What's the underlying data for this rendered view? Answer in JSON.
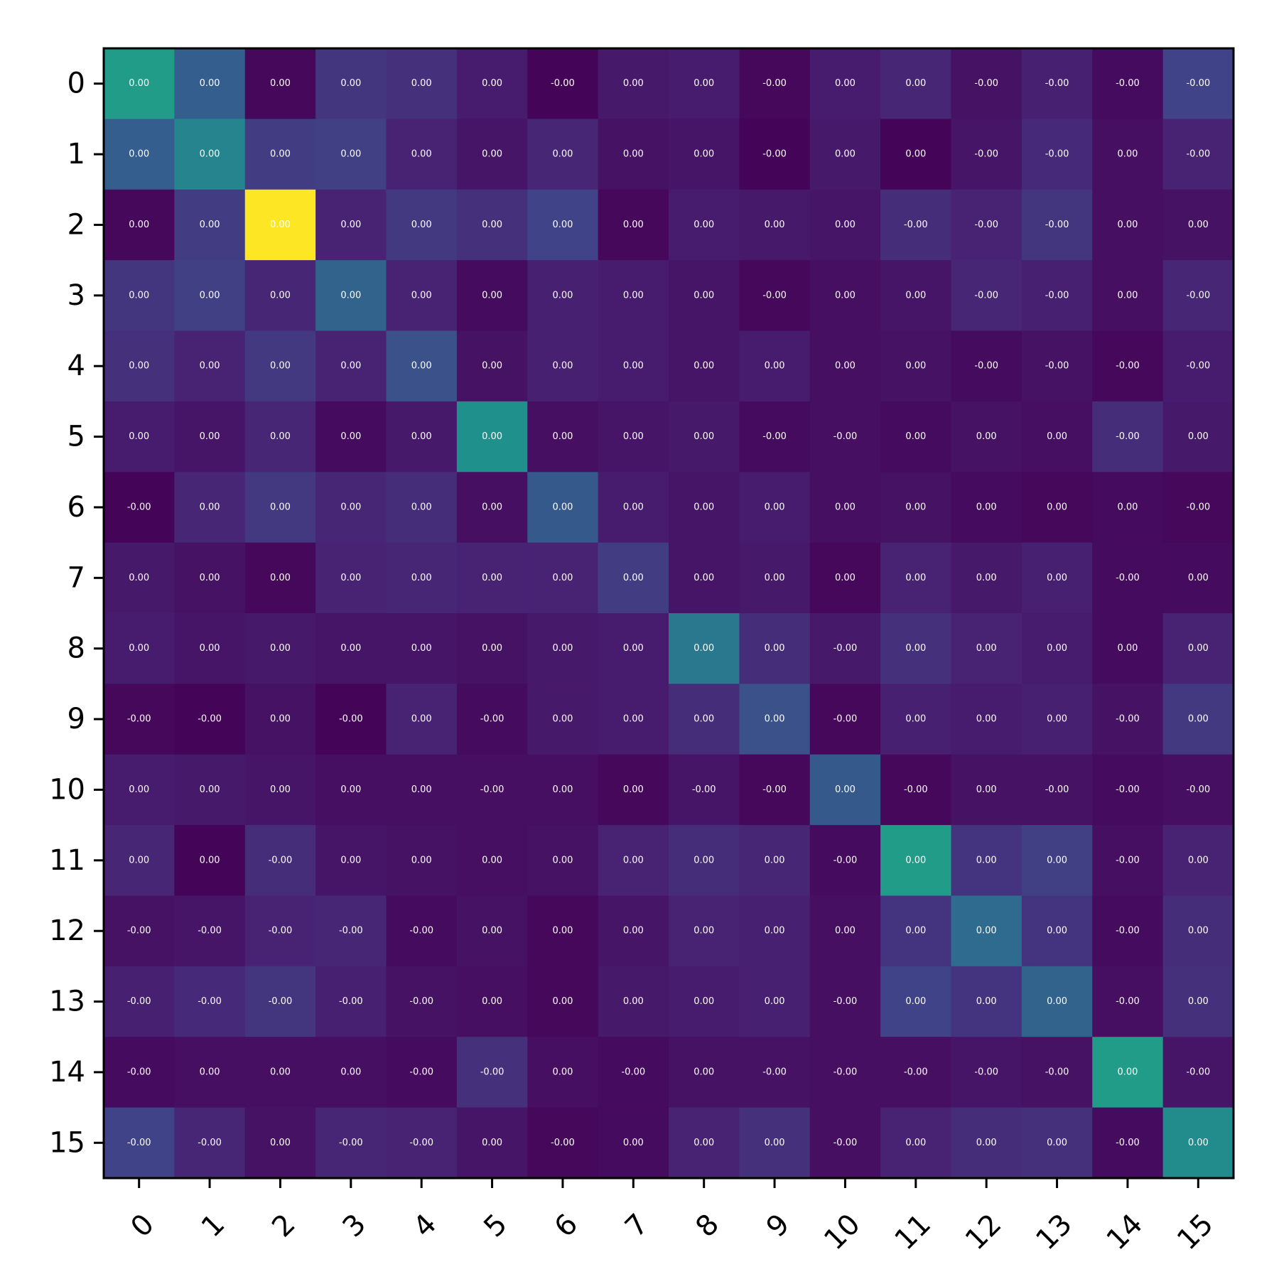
{
  "chart_data": {
    "type": "heatmap",
    "title": "",
    "xlabel": "",
    "ylabel": "",
    "x_tick_labels": [
      "0",
      "1",
      "2",
      "3",
      "4",
      "5",
      "6",
      "7",
      "8",
      "9",
      "10",
      "11",
      "12",
      "13",
      "14",
      "15"
    ],
    "y_tick_labels": [
      "0",
      "1",
      "2",
      "3",
      "4",
      "5",
      "6",
      "7",
      "8",
      "9",
      "10",
      "11",
      "12",
      "13",
      "14",
      "15"
    ],
    "x_tick_rotation_deg": 45,
    "colormap": "viridis",
    "color_range": [
      0.0,
      1.0
    ],
    "grid": false,
    "colorbar": false,
    "intensity": [
      [
        0.55,
        0.3,
        0.02,
        0.16,
        0.14,
        0.08,
        0.01,
        0.07,
        0.08,
        0.02,
        0.08,
        0.11,
        0.05,
        0.09,
        0.03,
        0.2
      ],
      [
        0.3,
        0.45,
        0.18,
        0.19,
        0.1,
        0.06,
        0.11,
        0.05,
        0.06,
        0.01,
        0.07,
        0.01,
        0.06,
        0.12,
        0.04,
        0.1
      ],
      [
        0.02,
        0.18,
        1.0,
        0.1,
        0.17,
        0.14,
        0.2,
        0.02,
        0.08,
        0.07,
        0.06,
        0.13,
        0.1,
        0.16,
        0.04,
        0.05
      ],
      [
        0.16,
        0.19,
        0.11,
        0.32,
        0.1,
        0.03,
        0.09,
        0.08,
        0.06,
        0.02,
        0.04,
        0.06,
        0.11,
        0.09,
        0.04,
        0.11
      ],
      [
        0.14,
        0.1,
        0.17,
        0.1,
        0.25,
        0.05,
        0.09,
        0.08,
        0.06,
        0.08,
        0.04,
        0.05,
        0.03,
        0.05,
        0.02,
        0.08
      ],
      [
        0.08,
        0.06,
        0.11,
        0.03,
        0.07,
        0.5,
        0.04,
        0.06,
        0.07,
        0.03,
        0.04,
        0.03,
        0.05,
        0.04,
        0.13,
        0.07
      ],
      [
        0.01,
        0.11,
        0.17,
        0.11,
        0.13,
        0.04,
        0.28,
        0.08,
        0.06,
        0.08,
        0.04,
        0.05,
        0.03,
        0.02,
        0.03,
        0.02
      ],
      [
        0.07,
        0.05,
        0.02,
        0.1,
        0.11,
        0.1,
        0.1,
        0.18,
        0.06,
        0.07,
        0.02,
        0.1,
        0.07,
        0.09,
        0.03,
        0.03
      ],
      [
        0.08,
        0.06,
        0.07,
        0.06,
        0.06,
        0.05,
        0.07,
        0.08,
        0.4,
        0.13,
        0.07,
        0.14,
        0.1,
        0.08,
        0.03,
        0.1
      ],
      [
        0.02,
        0.01,
        0.05,
        0.01,
        0.1,
        0.03,
        0.07,
        0.08,
        0.13,
        0.25,
        0.02,
        0.09,
        0.08,
        0.09,
        0.05,
        0.17
      ],
      [
        0.08,
        0.07,
        0.06,
        0.04,
        0.04,
        0.04,
        0.04,
        0.02,
        0.06,
        0.02,
        0.28,
        0.02,
        0.05,
        0.05,
        0.03,
        0.04
      ],
      [
        0.11,
        0.01,
        0.13,
        0.06,
        0.05,
        0.04,
        0.05,
        0.1,
        0.13,
        0.11,
        0.03,
        0.55,
        0.15,
        0.19,
        0.04,
        0.1
      ],
      [
        0.05,
        0.06,
        0.1,
        0.11,
        0.03,
        0.05,
        0.02,
        0.06,
        0.1,
        0.09,
        0.04,
        0.15,
        0.35,
        0.15,
        0.03,
        0.13
      ],
      [
        0.09,
        0.12,
        0.16,
        0.09,
        0.05,
        0.04,
        0.02,
        0.07,
        0.08,
        0.09,
        0.04,
        0.2,
        0.15,
        0.32,
        0.04,
        0.14
      ],
      [
        0.03,
        0.04,
        0.04,
        0.04,
        0.03,
        0.14,
        0.04,
        0.03,
        0.05,
        0.05,
        0.04,
        0.04,
        0.06,
        0.05,
        0.55,
        0.06
      ],
      [
        0.2,
        0.11,
        0.05,
        0.11,
        0.1,
        0.06,
        0.02,
        0.03,
        0.1,
        0.14,
        0.04,
        0.1,
        0.13,
        0.14,
        0.03,
        0.48
      ]
    ],
    "cell_labels": [
      [
        "0.00",
        "0.00",
        "0.00",
        "0.00",
        "0.00",
        "0.00",
        "-0.00",
        "0.00",
        "0.00",
        "-0.00",
        "0.00",
        "0.00",
        "-0.00",
        "-0.00",
        "-0.00",
        "-0.00"
      ],
      [
        "0.00",
        "0.00",
        "0.00",
        "0.00",
        "0.00",
        "0.00",
        "0.00",
        "0.00",
        "0.00",
        "-0.00",
        "0.00",
        "0.00",
        "-0.00",
        "-0.00",
        "0.00",
        "-0.00"
      ],
      [
        "0.00",
        "0.00",
        "0.00",
        "0.00",
        "0.00",
        "0.00",
        "0.00",
        "0.00",
        "0.00",
        "0.00",
        "0.00",
        "-0.00",
        "-0.00",
        "-0.00",
        "0.00",
        "0.00"
      ],
      [
        "0.00",
        "0.00",
        "0.00",
        "0.00",
        "0.00",
        "0.00",
        "0.00",
        "0.00",
        "0.00",
        "-0.00",
        "0.00",
        "0.00",
        "-0.00",
        "-0.00",
        "0.00",
        "-0.00"
      ],
      [
        "0.00",
        "0.00",
        "0.00",
        "0.00",
        "0.00",
        "0.00",
        "0.00",
        "0.00",
        "0.00",
        "0.00",
        "0.00",
        "0.00",
        "-0.00",
        "-0.00",
        "-0.00",
        "-0.00"
      ],
      [
        "0.00",
        "0.00",
        "0.00",
        "0.00",
        "0.00",
        "0.00",
        "0.00",
        "0.00",
        "0.00",
        "-0.00",
        "-0.00",
        "0.00",
        "0.00",
        "0.00",
        "-0.00",
        "0.00"
      ],
      [
        "-0.00",
        "0.00",
        "0.00",
        "0.00",
        "0.00",
        "0.00",
        "0.00",
        "0.00",
        "0.00",
        "0.00",
        "0.00",
        "0.00",
        "0.00",
        "0.00",
        "0.00",
        "-0.00"
      ],
      [
        "0.00",
        "0.00",
        "0.00",
        "0.00",
        "0.00",
        "0.00",
        "0.00",
        "0.00",
        "0.00",
        "0.00",
        "0.00",
        "0.00",
        "0.00",
        "0.00",
        "-0.00",
        "0.00"
      ],
      [
        "0.00",
        "0.00",
        "0.00",
        "0.00",
        "0.00",
        "0.00",
        "0.00",
        "0.00",
        "0.00",
        "0.00",
        "-0.00",
        "0.00",
        "0.00",
        "0.00",
        "0.00",
        "0.00"
      ],
      [
        "-0.00",
        "-0.00",
        "0.00",
        "-0.00",
        "0.00",
        "-0.00",
        "0.00",
        "0.00",
        "0.00",
        "0.00",
        "-0.00",
        "0.00",
        "0.00",
        "0.00",
        "-0.00",
        "0.00"
      ],
      [
        "0.00",
        "0.00",
        "0.00",
        "0.00",
        "0.00",
        "-0.00",
        "0.00",
        "0.00",
        "-0.00",
        "-0.00",
        "0.00",
        "-0.00",
        "0.00",
        "-0.00",
        "-0.00",
        "-0.00"
      ],
      [
        "0.00",
        "0.00",
        "-0.00",
        "0.00",
        "0.00",
        "0.00",
        "0.00",
        "0.00",
        "0.00",
        "0.00",
        "-0.00",
        "0.00",
        "0.00",
        "0.00",
        "-0.00",
        "0.00"
      ],
      [
        "-0.00",
        "-0.00",
        "-0.00",
        "-0.00",
        "-0.00",
        "0.00",
        "0.00",
        "0.00",
        "0.00",
        "0.00",
        "0.00",
        "0.00",
        "0.00",
        "0.00",
        "-0.00",
        "0.00"
      ],
      [
        "-0.00",
        "-0.00",
        "-0.00",
        "-0.00",
        "-0.00",
        "0.00",
        "0.00",
        "0.00",
        "0.00",
        "0.00",
        "-0.00",
        "0.00",
        "0.00",
        "0.00",
        "-0.00",
        "0.00"
      ],
      [
        "-0.00",
        "0.00",
        "0.00",
        "0.00",
        "-0.00",
        "-0.00",
        "0.00",
        "-0.00",
        "0.00",
        "-0.00",
        "-0.00",
        "-0.00",
        "-0.00",
        "-0.00",
        "0.00",
        "-0.00"
      ],
      [
        "-0.00",
        "-0.00",
        "0.00",
        "-0.00",
        "-0.00",
        "0.00",
        "-0.00",
        "0.00",
        "0.00",
        "0.00",
        "-0.00",
        "0.00",
        "0.00",
        "0.00",
        "-0.00",
        "0.00"
      ]
    ]
  }
}
